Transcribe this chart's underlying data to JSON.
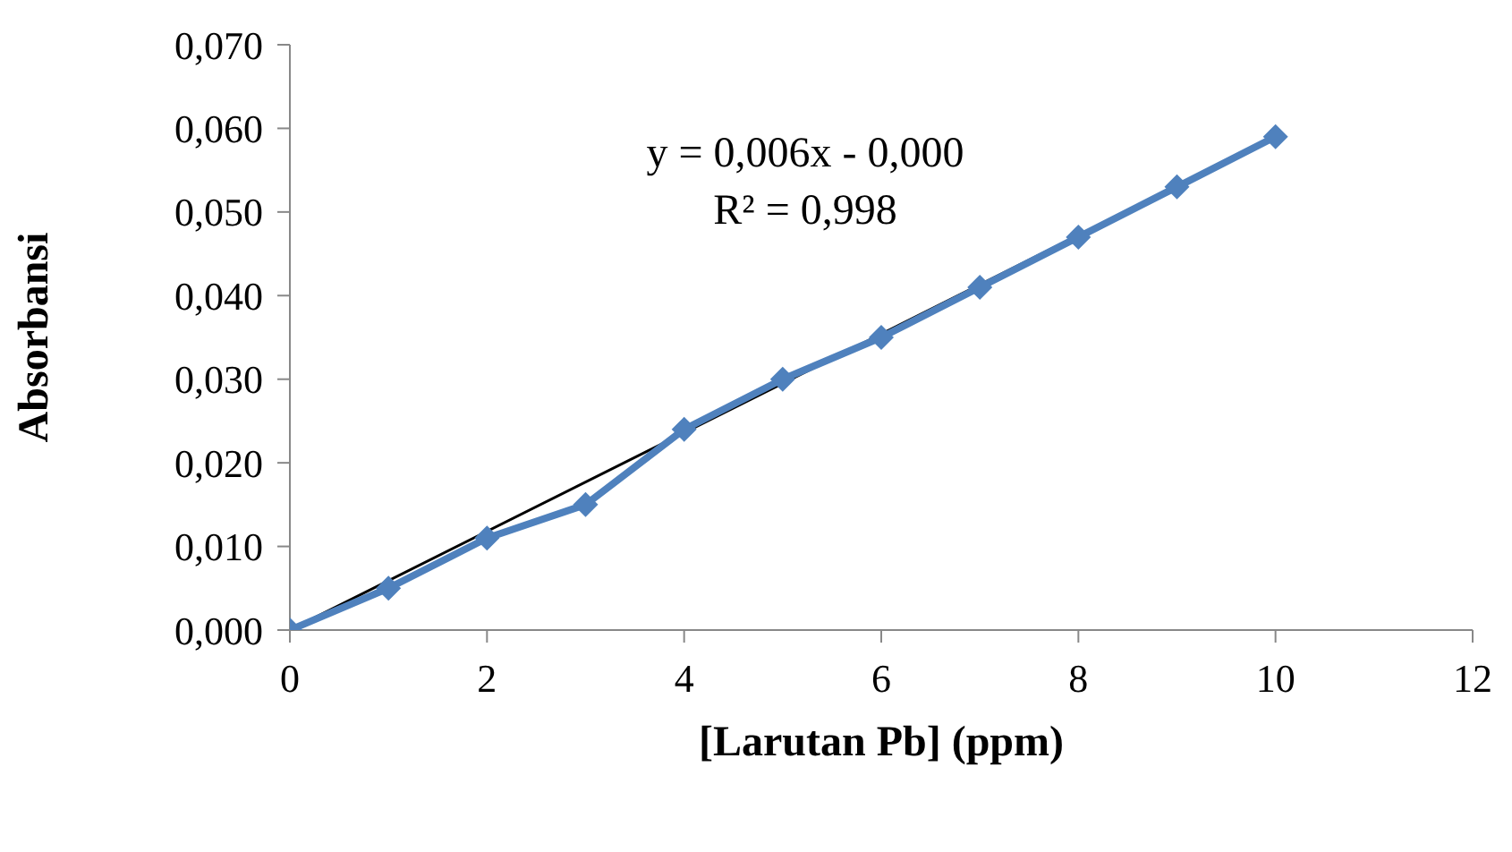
{
  "chart_data": {
    "type": "line",
    "xlabel": "[Larutan Pb] (ppm)",
    "ylabel": "Absorbansi",
    "x": [
      0,
      1,
      2,
      3,
      4,
      5,
      6,
      7,
      8,
      9,
      10
    ],
    "series": [
      {
        "color": "#4f81bd",
        "values": [
          0.0,
          0.005,
          0.011,
          0.015,
          0.024,
          0.03,
          0.035,
          0.041,
          0.047,
          0.053,
          0.059
        ],
        "marker": "diamond"
      },
      {
        "type": "line",
        "color": "#000000",
        "x": [
          0,
          10
        ],
        "values": [
          0.0,
          0.059
        ],
        "marker": "none"
      }
    ],
    "annotations": [
      "y = 0,006x - 0,000",
      "R² = 0,998"
    ],
    "xlim": [
      0,
      12
    ],
    "xticks": [
      0,
      2,
      4,
      6,
      8,
      10,
      12
    ],
    "ylim": [
      0,
      0.07
    ],
    "yticks": [
      {
        "value": 0,
        "label": "0,000"
      },
      {
        "value": 0.01,
        "label": "0,010"
      },
      {
        "value": 0.02,
        "label": "0,020"
      },
      {
        "value": 0.03,
        "label": "0,030"
      },
      {
        "value": 0.04,
        "label": "0,040"
      },
      {
        "value": 0.05,
        "label": "0,050"
      },
      {
        "value": 0.06,
        "label": "0,060"
      },
      {
        "value": 0.07,
        "label": "0,070"
      }
    ],
    "grid": false,
    "legend": false
  }
}
